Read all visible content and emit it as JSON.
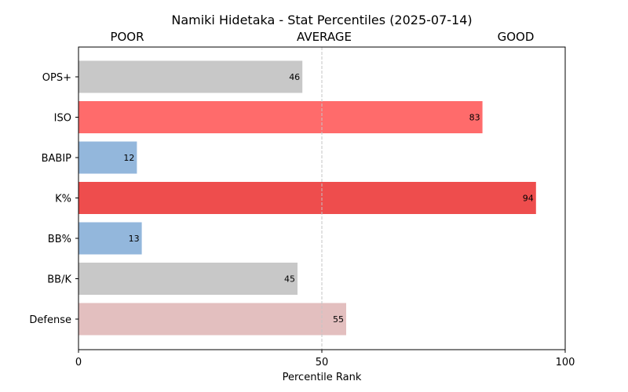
{
  "chart_data": {
    "type": "bar",
    "orientation": "horizontal",
    "title": "Namiki Hidetaka - Stat Percentiles (2025-07-14)",
    "xlabel": "Percentile Rank",
    "ylabel": "",
    "xlim": [
      0,
      100
    ],
    "xticks": [
      "0",
      "50",
      "100"
    ],
    "zone_labels": {
      "poor": "POOR",
      "average": "AVERAGE",
      "good": "GOOD"
    },
    "reference_line": 50,
    "grid": false,
    "categories": [
      "OPS+",
      "ISO",
      "BABIP",
      "K%",
      "BB%",
      "BB/K",
      "Defense"
    ],
    "values": [
      46,
      83,
      12,
      94,
      13,
      45,
      55
    ],
    "bar_colors": [
      "#c8c8c8",
      "#ff6b6b",
      "#93b7dc",
      "#ee4d4d",
      "#93b7dc",
      "#c8c8c8",
      "#e3bfbf"
    ]
  }
}
